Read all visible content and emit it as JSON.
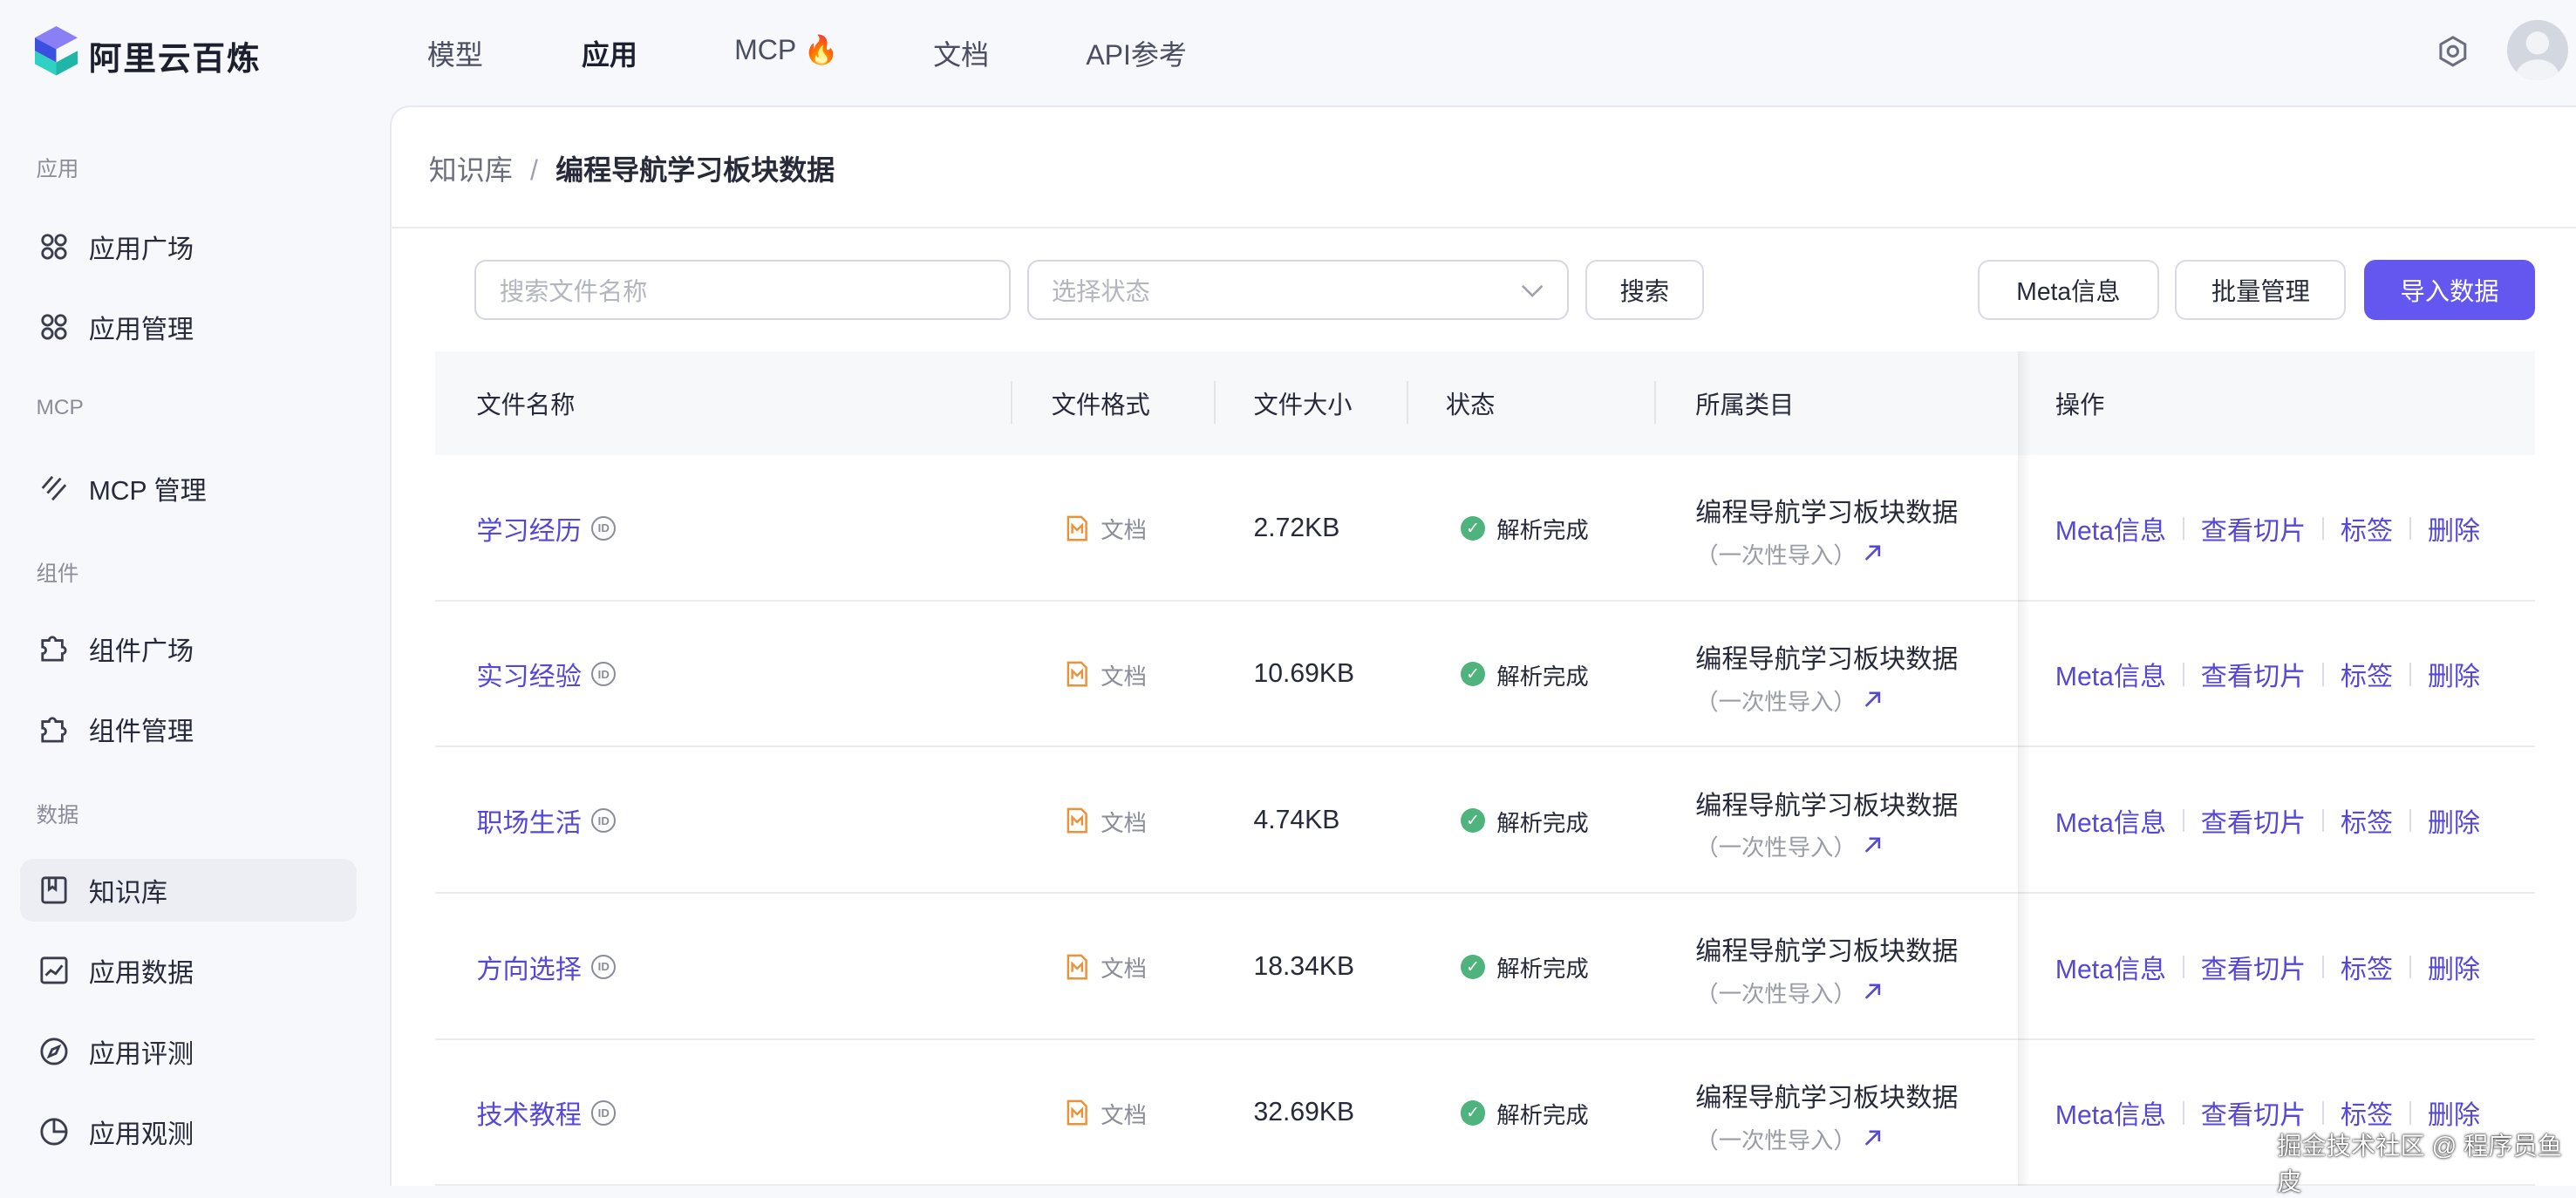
{
  "brand": {
    "name": "阿里云百炼"
  },
  "topnav": {
    "items": [
      {
        "label": "模型"
      },
      {
        "label": "应用",
        "active": true
      },
      {
        "label": "MCP",
        "icon": "fire-icon",
        "icon_glyph": "🔥"
      },
      {
        "label": "文档"
      },
      {
        "label": "API参考"
      }
    ]
  },
  "sidebar": {
    "sections": [
      "应用",
      "MCP",
      "组件",
      "数据"
    ],
    "items": [
      {
        "label": "应用广场",
        "icon": "apps-icon"
      },
      {
        "label": "应用管理",
        "icon": "apps-icon"
      },
      {
        "label": "MCP 管理",
        "icon": "mcp-icon"
      },
      {
        "label": "组件广场",
        "icon": "puzzle-icon"
      },
      {
        "label": "组件管理",
        "icon": "puzzle-icon"
      },
      {
        "label": "知识库",
        "icon": "book-icon",
        "active": true
      },
      {
        "label": "应用数据",
        "icon": "chart-icon"
      },
      {
        "label": "应用评测",
        "icon": "compass-icon"
      },
      {
        "label": "应用观测",
        "icon": "pie-icon"
      }
    ]
  },
  "breadcrumb": {
    "root": "知识库",
    "sep": "/",
    "current": "编程导航学习板块数据"
  },
  "toolbar": {
    "search_placeholder": "搜索文件名称",
    "status_placeholder": "选择状态",
    "search_label": "搜索",
    "meta_label": "Meta信息",
    "batch_label": "批量管理",
    "import_label": "导入数据"
  },
  "table": {
    "headers": [
      "文件名称",
      "文件格式",
      "文件大小",
      "状态",
      "所属类目",
      "操作"
    ],
    "rows": [
      {
        "name": "学习经历",
        "format": "文档",
        "size": "2.72KB",
        "status": "解析完成",
        "category": "编程导航学习板块数据",
        "sub": "（一次性导入）"
      },
      {
        "name": "实习经验",
        "format": "文档",
        "size": "10.69KB",
        "status": "解析完成",
        "category": "编程导航学习板块数据",
        "sub": "（一次性导入）"
      },
      {
        "name": "职场生活",
        "format": "文档",
        "size": "4.74KB",
        "status": "解析完成",
        "category": "编程导航学习板块数据",
        "sub": "（一次性导入）"
      },
      {
        "name": "方向选择",
        "format": "文档",
        "size": "18.34KB",
        "status": "解析完成",
        "category": "编程导航学习板块数据",
        "sub": "（一次性导入）"
      },
      {
        "name": "技术教程",
        "format": "文档",
        "size": "32.69KB",
        "status": "解析完成",
        "category": "编程导航学习板块数据",
        "sub": "（一次性导入）"
      }
    ],
    "actions": [
      "Meta信息",
      "查看切片",
      "标签",
      "删除"
    ],
    "id_badge": "ID"
  },
  "watermark": "掘金技术社区 @ 程序员鱼皮",
  "colors": {
    "accent": "#6457ef",
    "link": "#5548d8",
    "success": "#4fb37d",
    "format_icon": "#e8933a"
  }
}
